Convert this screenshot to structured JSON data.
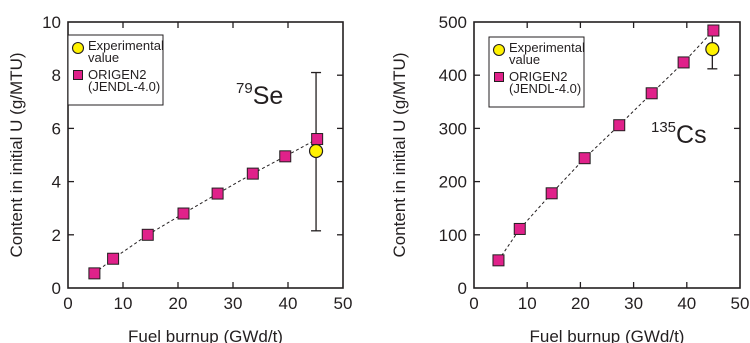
{
  "chart_data": [
    {
      "type": "scatter",
      "isotope": {
        "mass_number": "79",
        "symbol": "Se"
      },
      "xlabel": "Fuel burnup (GWd/t)",
      "ylabel": "Content in initial U (g/MTU)",
      "xlim": [
        0,
        50
      ],
      "ylim": [
        0,
        10
      ],
      "xticks": [
        "0",
        "10",
        "20",
        "30",
        "40",
        "50"
      ],
      "yticks": [
        "0",
        "2",
        "4",
        "6",
        "8",
        "10"
      ],
      "legend": {
        "position": "top-left",
        "entries": [
          "Experimental value",
          "ORIGEN2 (JENDL-4.0)"
        ]
      },
      "series": [
        {
          "name": "ORIGEN2 (JENDL-4.0)",
          "marker": "square",
          "color": "#e0218a",
          "line": "dashed",
          "x": [
            4.8,
            8.2,
            14.5,
            21.0,
            27.2,
            33.6,
            39.5,
            45.3
          ],
          "y": [
            0.55,
            1.1,
            2.0,
            2.8,
            3.55,
            4.3,
            4.95,
            5.6
          ]
        },
        {
          "name": "Experimental value",
          "marker": "circle",
          "color": "#fff200",
          "x": [
            45.1
          ],
          "y": [
            5.15
          ],
          "error_low": [
            2.15
          ],
          "error_high": [
            8.1
          ]
        }
      ]
    },
    {
      "type": "scatter",
      "isotope": {
        "mass_number": "135",
        "symbol": "Cs"
      },
      "xlabel": "Fuel burnup (GWd/t)",
      "ylabel": "Content in initial U (g/MTU)",
      "xlim": [
        0,
        50
      ],
      "ylim": [
        0,
        500
      ],
      "xticks": [
        "0",
        "10",
        "20",
        "30",
        "40",
        "50"
      ],
      "yticks": [
        "0",
        "100",
        "200",
        "300",
        "400",
        "500"
      ],
      "legend": {
        "position": "top-left",
        "entries": [
          "Experimental value",
          "ORIGEN2 (JENDL-4.0)"
        ]
      },
      "series": [
        {
          "name": "ORIGEN2 (JENDL-4.0)",
          "marker": "square",
          "color": "#e0218a",
          "line": "dashed",
          "x": [
            4.6,
            8.6,
            14.6,
            20.8,
            27.3,
            33.4,
            39.4,
            45.0
          ],
          "y": [
            52,
            111,
            178,
            244,
            306,
            366,
            424,
            484
          ]
        },
        {
          "name": "Experimental value",
          "marker": "circle",
          "color": "#fff200",
          "x": [
            44.8
          ],
          "y": [
            449
          ],
          "error_low": [
            412
          ],
          "error_high": [
            486
          ]
        }
      ]
    }
  ]
}
